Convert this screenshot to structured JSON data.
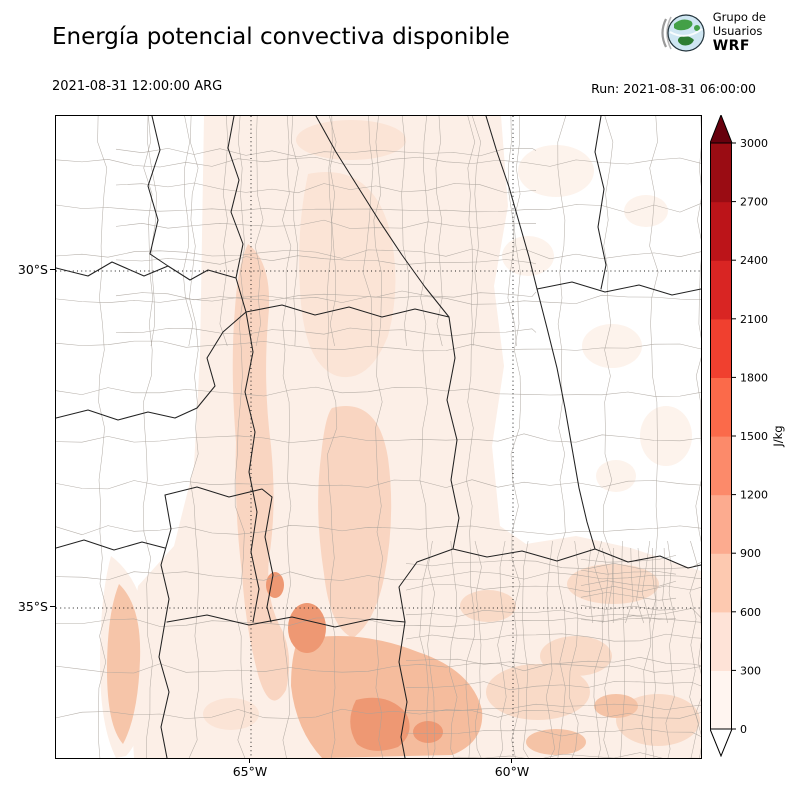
{
  "header": {
    "title": "Energía potencial convectiva disponible",
    "logo": {
      "line1": "Grupo de",
      "line2": "Usuarios",
      "line3": "WRF"
    }
  },
  "subheader": {
    "valid_time": "2021-08-31 12:00:00 ARG",
    "run_label": "Run: 2021-08-31 06:00:00"
  },
  "map": {
    "lat_ticks": [
      "30°S",
      "35°S"
    ],
    "lon_ticks": [
      "65°W",
      "60°W"
    ]
  },
  "colorbar": {
    "unit": "J/kg",
    "levels": [
      0,
      300,
      600,
      900,
      1200,
      1500,
      1800,
      2100,
      2400,
      2700,
      3000
    ],
    "tick_labels": [
      "0",
      "300",
      "600",
      "900",
      "1200",
      "1500",
      "1800",
      "2100",
      "2400",
      "2700",
      "3000"
    ],
    "segment_colors_bottom_to_top": [
      "#fff5f0",
      "#fee3d7",
      "#fdc9b0",
      "#fcab8f",
      "#fc8a6a",
      "#fb6a4a",
      "#f0402f",
      "#d92523",
      "#bc1419",
      "#9a0c13"
    ],
    "over_color": "#67000d",
    "under_color": "#ffffff"
  }
}
